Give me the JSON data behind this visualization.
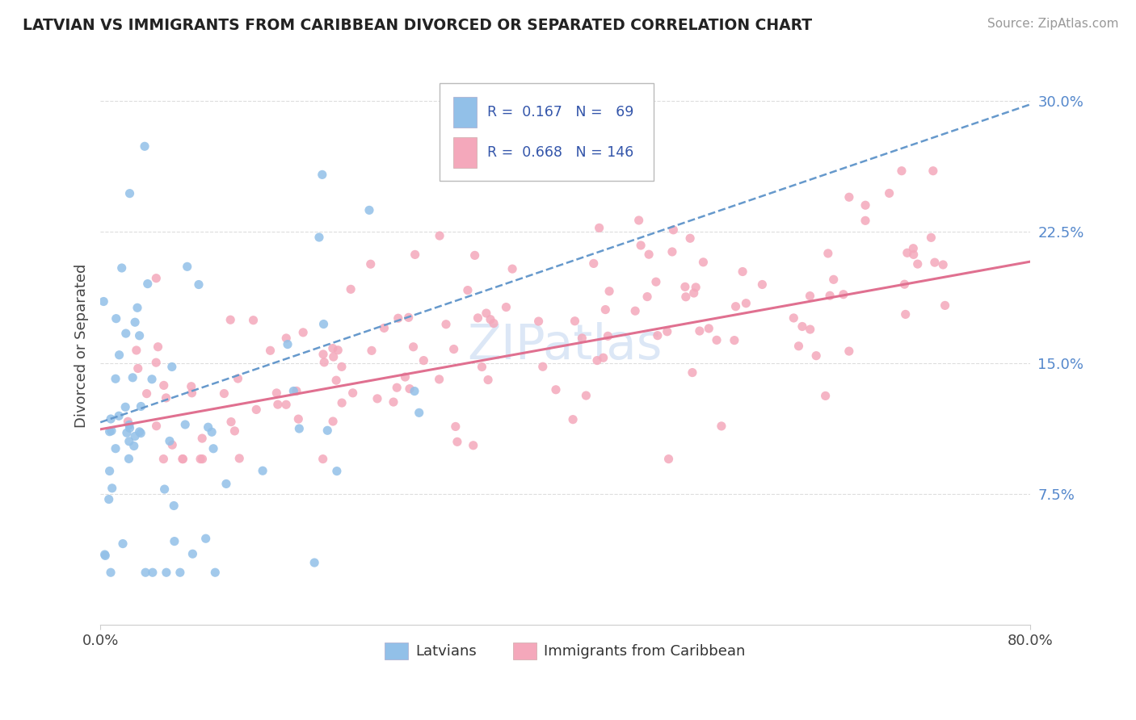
{
  "title": "LATVIAN VS IMMIGRANTS FROM CARIBBEAN DIVORCED OR SEPARATED CORRELATION CHART",
  "source": "Source: ZipAtlas.com",
  "ylabel": "Divorced or Separated",
  "xmin": 0.0,
  "xmax": 0.8,
  "ymin": 0.0,
  "ymax": 0.32,
  "yticks": [
    0.075,
    0.15,
    0.225,
    0.3
  ],
  "ytick_labels": [
    "7.5%",
    "15.0%",
    "22.5%",
    "30.0%"
  ],
  "xticks": [
    0.0,
    0.8
  ],
  "xtick_labels": [
    "0.0%",
    "80.0%"
  ],
  "legend_labels": [
    "Latvians",
    "Immigrants from Caribbean"
  ],
  "legend_r": [
    0.167,
    0.668
  ],
  "legend_n": [
    69,
    146
  ],
  "blue_color": "#92C0E8",
  "pink_color": "#F4A8BB",
  "blue_line_color": "#6699CC",
  "pink_line_color": "#E07090",
  "watermark": "ZIPatlas"
}
